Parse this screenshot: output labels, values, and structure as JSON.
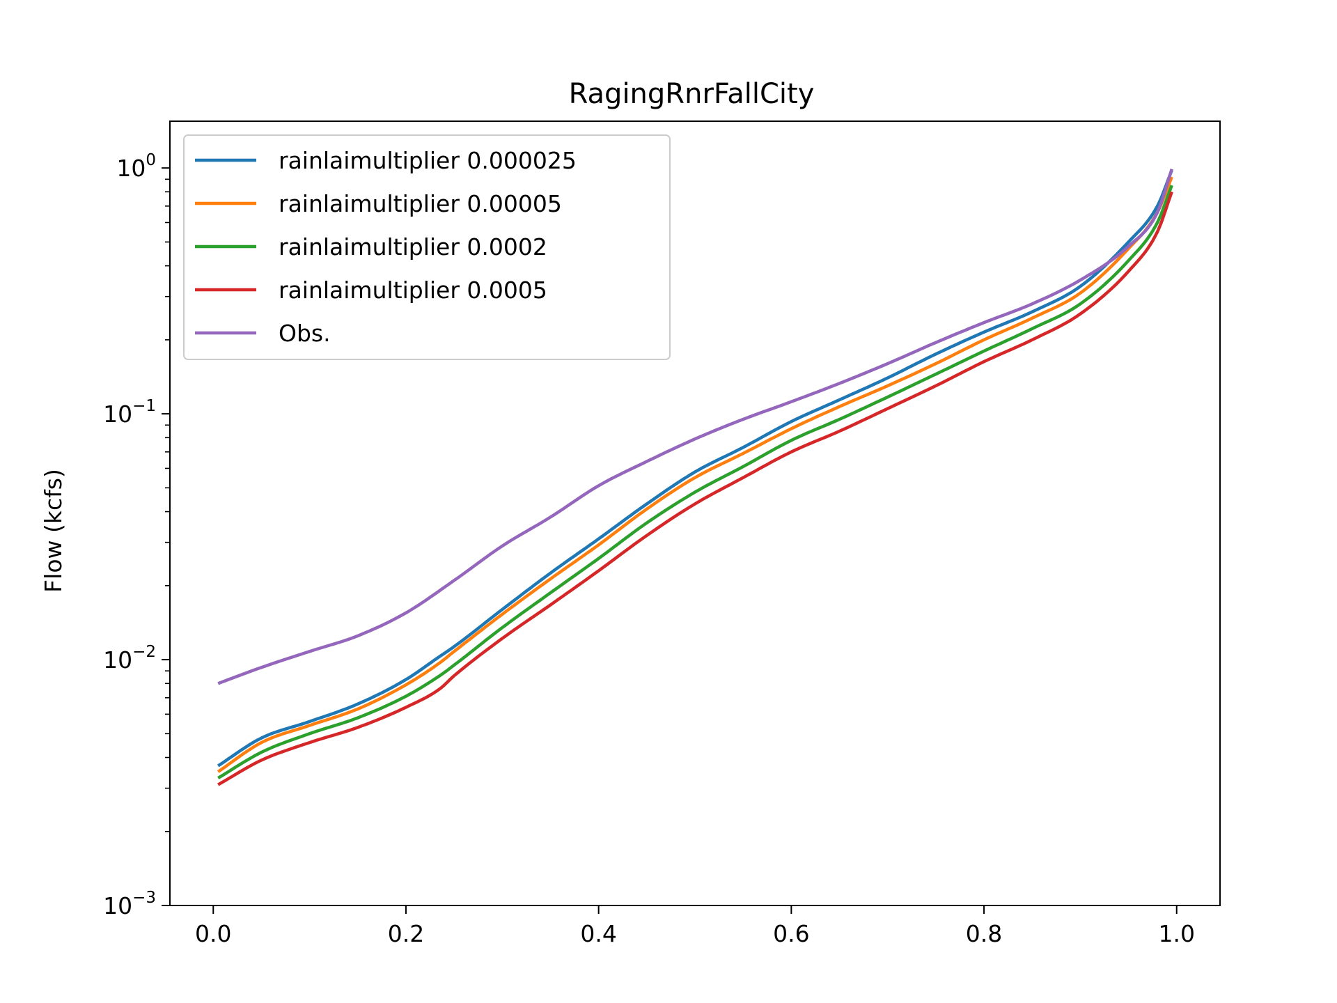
{
  "chart_data": {
    "type": "line",
    "title": "RagingRnrFallCity",
    "xlabel": "",
    "ylabel": "Flow (kcfs)",
    "yscale": "log",
    "xlim": [
      -0.045,
      1.045
    ],
    "ylim": [
      0.001,
      1.55
    ],
    "grid": false,
    "legend_position": "top-left",
    "x_ticks": [
      {
        "value": 0.0,
        "label": "0.0"
      },
      {
        "value": 0.2,
        "label": "0.2"
      },
      {
        "value": 0.4,
        "label": "0.4"
      },
      {
        "value": 0.6,
        "label": "0.6"
      },
      {
        "value": 0.8,
        "label": "0.8"
      },
      {
        "value": 1.0,
        "label": "1.0"
      }
    ],
    "y_ticks": [
      {
        "value": 0.001,
        "base": "10",
        "exponent": "−3"
      },
      {
        "value": 0.01,
        "base": "10",
        "exponent": "−2"
      },
      {
        "value": 0.1,
        "base": "10",
        "exponent": "−1"
      },
      {
        "value": 1,
        "base": "10",
        "exponent": "0"
      }
    ],
    "series": [
      {
        "name": "rainlaimultiplier 0.000025",
        "color": "#1f77b4",
        "x": [
          0.005,
          0.05,
          0.1,
          0.15,
          0.2,
          0.235,
          0.25,
          0.3,
          0.35,
          0.4,
          0.45,
          0.5,
          0.55,
          0.6,
          0.65,
          0.7,
          0.75,
          0.8,
          0.85,
          0.9,
          0.95,
          0.98,
          0.995
        ],
        "y": [
          0.0037,
          0.0048,
          0.0056,
          0.0066,
          0.0083,
          0.0103,
          0.0113,
          0.016,
          0.0225,
          0.031,
          0.043,
          0.058,
          0.073,
          0.093,
          0.114,
          0.14,
          0.175,
          0.215,
          0.26,
          0.33,
          0.5,
          0.7,
          0.98
        ]
      },
      {
        "name": "rainlaimultiplier 0.00005",
        "color": "#ff7f0e",
        "x": [
          0.005,
          0.05,
          0.1,
          0.15,
          0.2,
          0.235,
          0.25,
          0.3,
          0.35,
          0.4,
          0.45,
          0.5,
          0.55,
          0.6,
          0.65,
          0.7,
          0.75,
          0.8,
          0.85,
          0.9,
          0.95,
          0.98,
          0.995
        ],
        "y": [
          0.0035,
          0.0046,
          0.0054,
          0.0063,
          0.0079,
          0.0097,
          0.0108,
          0.0153,
          0.0213,
          0.0293,
          0.041,
          0.055,
          0.069,
          0.087,
          0.107,
          0.13,
          0.16,
          0.2,
          0.245,
          0.31,
          0.47,
          0.66,
          0.92
        ]
      },
      {
        "name": "rainlaimultiplier 0.0002",
        "color": "#2ca02c",
        "x": [
          0.005,
          0.05,
          0.1,
          0.15,
          0.2,
          0.235,
          0.25,
          0.3,
          0.35,
          0.4,
          0.45,
          0.5,
          0.55,
          0.6,
          0.65,
          0.7,
          0.75,
          0.8,
          0.85,
          0.9,
          0.95,
          0.98,
          0.995
        ],
        "y": [
          0.0033,
          0.0042,
          0.005,
          0.0058,
          0.0071,
          0.0086,
          0.0095,
          0.0135,
          0.0187,
          0.0258,
          0.036,
          0.048,
          0.061,
          0.078,
          0.095,
          0.117,
          0.145,
          0.18,
          0.222,
          0.28,
          0.42,
          0.6,
          0.85
        ]
      },
      {
        "name": "rainlaimultiplier 0.0005",
        "color": "#d62728",
        "x": [
          0.005,
          0.05,
          0.1,
          0.15,
          0.2,
          0.235,
          0.25,
          0.3,
          0.35,
          0.4,
          0.45,
          0.5,
          0.55,
          0.6,
          0.65,
          0.7,
          0.75,
          0.8,
          0.85,
          0.9,
          0.95,
          0.98,
          0.995
        ],
        "y": [
          0.0031,
          0.0039,
          0.0046,
          0.0053,
          0.0064,
          0.0076,
          0.0086,
          0.0122,
          0.0167,
          0.023,
          0.032,
          0.043,
          0.055,
          0.07,
          0.085,
          0.105,
          0.13,
          0.163,
          0.2,
          0.255,
          0.38,
          0.55,
          0.8
        ]
      },
      {
        "name": "Obs.",
        "color": "#9467bd",
        "x": [
          0.005,
          0.05,
          0.1,
          0.15,
          0.2,
          0.25,
          0.3,
          0.35,
          0.4,
          0.45,
          0.5,
          0.55,
          0.6,
          0.65,
          0.7,
          0.75,
          0.8,
          0.85,
          0.9,
          0.95,
          0.98,
          0.995
        ],
        "y": [
          0.008,
          0.0093,
          0.0108,
          0.0125,
          0.0155,
          0.021,
          0.029,
          0.038,
          0.051,
          0.064,
          0.079,
          0.095,
          0.112,
          0.133,
          0.16,
          0.195,
          0.235,
          0.28,
          0.35,
          0.48,
          0.66,
          0.99
        ]
      }
    ]
  }
}
